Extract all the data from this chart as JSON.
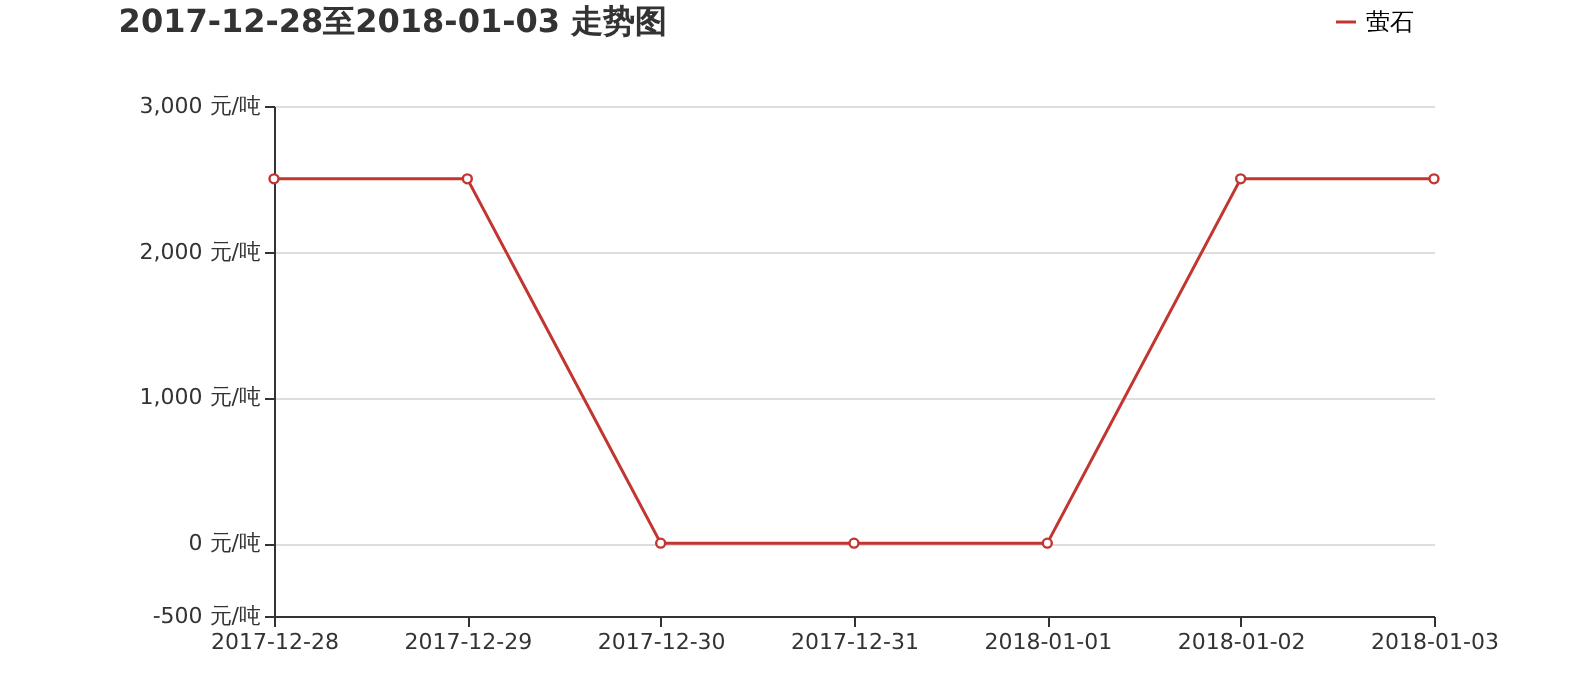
{
  "chart_data": {
    "type": "line",
    "title": "2017-12-28至2018-01-03 走势图",
    "categories": [
      "2017-12-28",
      "2017-12-29",
      "2017-12-30",
      "2017-12-31",
      "2018-01-01",
      "2018-01-02",
      "2018-01-03"
    ],
    "series": [
      {
        "name": "萤石",
        "color": "#c23531",
        "values": [
          2500,
          2500,
          0,
          0,
          0,
          2500,
          2500
        ]
      }
    ],
    "ylim": [
      -500,
      3000
    ],
    "yticks": [
      {
        "value": -500,
        "label": "-500 元/吨"
      },
      {
        "value": 0,
        "label": "0 元/吨"
      },
      {
        "value": 1000,
        "label": "1,000 元/吨"
      },
      {
        "value": 2000,
        "label": "2,000 元/吨"
      },
      {
        "value": 3000,
        "label": "3,000 元/吨"
      }
    ],
    "grid": "y",
    "legend": "top right",
    "marker": "circle",
    "line_style": "solid"
  }
}
